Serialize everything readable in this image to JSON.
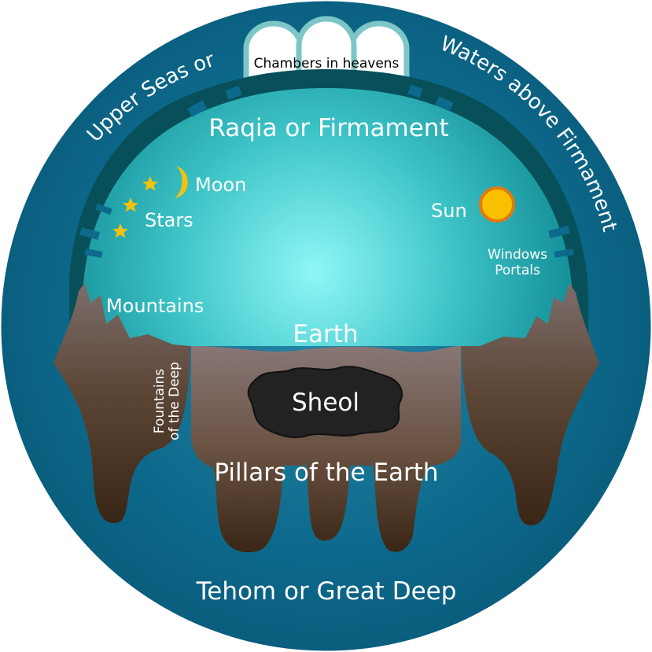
{
  "labels": {
    "chambers": "Chambers in heavens",
    "upper_seas": "Upper Seas or",
    "waters_above": "Waters above Firmament",
    "firmament": "Raqia or Firmament",
    "moon": "Moon",
    "stars": "Stars",
    "sun": "Sun",
    "windows_line1": "Windows",
    "windows_line2": "Portals",
    "mountains": "Mountains",
    "earth": "Earth",
    "sheol": "Sheol",
    "fountains_line1": "Fountains",
    "fountains_line2": "of the Deep",
    "pillars": "Pillars of the Earth",
    "tehom": "Tehom or Great Deep"
  },
  "colors": {
    "outer_waters": "#0d6a8c",
    "firmament_band": "#07505a",
    "dome_center": "#8ff6f8",
    "dome_edge": "#18989f",
    "earth_top": "#7a6a68",
    "earth_bottom": "#3a2616",
    "sheol": "#222222",
    "star": "#f4c20d",
    "sun": "#f9c000",
    "sun_ring": "#e07a10",
    "chamber_fill": "#ffffff",
    "chamber_stroke": "#7cc6c7"
  }
}
